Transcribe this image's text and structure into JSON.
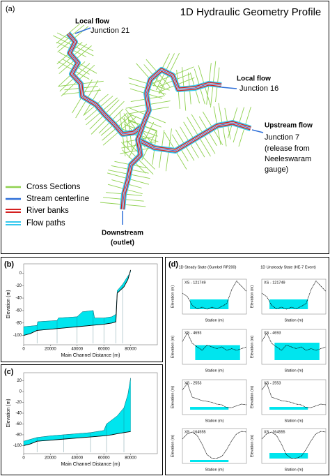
{
  "panel_a": {
    "label": "(a)",
    "title": "1D Hydraulic Geometry Profile",
    "annotations": {
      "junction_21": [
        "Local flow",
        "Junction 21"
      ],
      "junction_16": [
        "Local flow",
        "Junction 16"
      ],
      "junction_7": [
        "Upstream flow",
        "Junction 7",
        "(release from",
        "Neeleswaram",
        "gauge)"
      ],
      "outlet": [
        "Downstream",
        "(outlet)"
      ]
    },
    "legend": [
      "Cross Sections",
      "Stream centerline",
      "River banks",
      "Flow paths"
    ]
  },
  "panel_b": {
    "label": "(b)",
    "x_label": "Main Channel Distance (m)",
    "y_label": "Elevation (m)",
    "xlim": [
      0,
      100000
    ],
    "xticks": [
      0,
      20000,
      40000,
      60000,
      80000
    ],
    "ylim": [
      -115,
      15
    ],
    "yticks": [
      -100,
      -80,
      -60,
      -40,
      -20,
      0
    ],
    "series": [
      {
        "name": "water",
        "color": "#00e5ee",
        "x": [
          0,
          10000,
          10500,
          25000,
          26000,
          40000,
          44000,
          52000,
          53000,
          60000,
          66000,
          69000,
          70000,
          74000,
          80000
        ],
        "values": [
          -86,
          -84,
          -78,
          -76,
          -72,
          -70,
          -62,
          -60,
          -72,
          -72,
          -70,
          -66,
          -28,
          -18,
          2
        ]
      },
      {
        "name": "bed",
        "color": "#000000",
        "x": [
          0,
          5000,
          10000,
          20000,
          30000,
          40000,
          50000,
          60000,
          66000,
          69000,
          70000,
          75000,
          78000,
          80000
        ],
        "values": [
          -100,
          -97,
          -92,
          -90,
          -88,
          -86,
          -84,
          -82,
          -80,
          -78,
          -32,
          -22,
          -10,
          5
        ]
      }
    ]
  },
  "panel_c": {
    "label": "(c)",
    "x_label": "Main Channel Distance (m)",
    "y_label": "Elevation (m)",
    "xlim": [
      0,
      100000
    ],
    "xticks": [
      0,
      20000,
      40000,
      60000,
      80000
    ],
    "ylim": [
      -115,
      35
    ],
    "yticks": [
      -100,
      -80,
      -60,
      -40,
      -20,
      0,
      20
    ],
    "series": [
      {
        "name": "water",
        "color": "#00e5ee",
        "x": [
          0,
          10000,
          20000,
          30000,
          40000,
          50000,
          60000,
          62000,
          70000,
          75000,
          78000,
          80000
        ],
        "values": [
          -92,
          -85,
          -82,
          -80,
          -78,
          -76,
          -72,
          -60,
          -45,
          -30,
          -5,
          25
        ]
      },
      {
        "name": "bed",
        "color": "#000000",
        "x": [
          0,
          5000,
          10000,
          20000,
          30000,
          40000,
          50000,
          60000,
          66000,
          70000,
          75000,
          80000
        ],
        "values": [
          -100,
          -97,
          -92,
          -90,
          -88,
          -86,
          -84,
          -82,
          -80,
          -78,
          -76,
          -74
        ]
      }
    ]
  },
  "panel_d": {
    "label": "(d)",
    "columns": [
      "1D Steady State (Gumbel RP200)",
      "1D Unsteady State (HE-7 Event)"
    ],
    "cross_sections": [
      "XS - 121749",
      "XS - 4693",
      "XS - 2553",
      "XS - 164555"
    ],
    "x_label": "Station (m)",
    "y_label": "Elevation (m)"
  }
}
